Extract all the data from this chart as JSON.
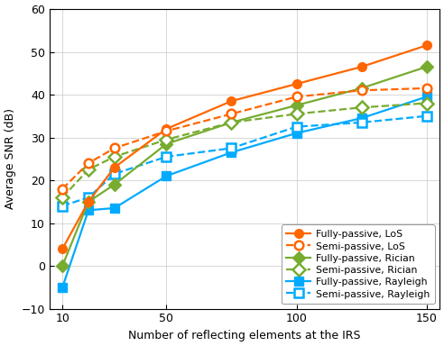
{
  "x": [
    10,
    20,
    30,
    50,
    75,
    100,
    125,
    150
  ],
  "y_fp_los": [
    4.0,
    15.0,
    23.0,
    32.0,
    38.5,
    42.5,
    46.5,
    51.5
  ],
  "y_sp_los": [
    18.0,
    24.0,
    27.5,
    31.5,
    35.5,
    39.5,
    41.0,
    41.5
  ],
  "y_fp_ric": [
    0.0,
    15.0,
    19.0,
    28.5,
    33.5,
    37.5,
    41.5,
    46.5
  ],
  "y_sp_ric": [
    16.0,
    22.5,
    25.5,
    29.5,
    33.5,
    35.5,
    37.0,
    38.0
  ],
  "y_fp_ray": [
    -5.0,
    13.0,
    13.5,
    21.0,
    26.5,
    31.0,
    34.5,
    39.5
  ],
  "y_sp_ray": [
    14.0,
    16.0,
    21.5,
    25.5,
    27.5,
    32.5,
    33.5,
    35.0
  ],
  "color_orange": "#FF6600",
  "color_green": "#77AC30",
  "color_blue": "#00AAFF",
  "xlabel": "Number of reflecting elements at the IRS",
  "ylabel": "Average SNR (dB)",
  "ylim": [
    -10,
    60
  ],
  "xlim": [
    5,
    155
  ],
  "yticks": [
    -10,
    0,
    10,
    20,
    30,
    40,
    50,
    60
  ],
  "xticks": [
    10,
    50,
    100,
    150
  ],
  "legend_labels": [
    "Fully-passive, LoS",
    "Semi-passive, LoS",
    "Fully-passive, Rician",
    "Semi-passive, Rician",
    "Fully-passive, Rayleigh",
    "Semi-passive, Rayleigh"
  ]
}
